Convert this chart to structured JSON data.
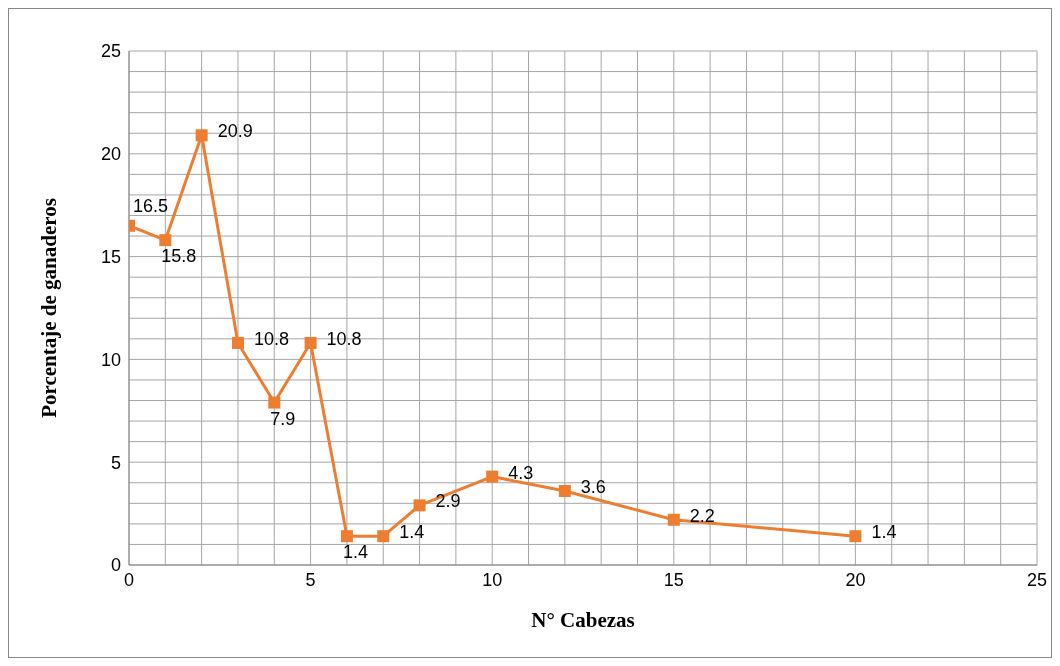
{
  "chart_data": {
    "type": "line",
    "xlabel": "N° Cabezas",
    "ylabel": "Porcentaje de ganaderos",
    "x": [
      0,
      1,
      2,
      3,
      4,
      5,
      6,
      7,
      8,
      10,
      12,
      15,
      20
    ],
    "series": [
      {
        "color": "#ed7d31",
        "values": [
          16.5,
          15.8,
          20.9,
          10.8,
          7.9,
          10.8,
          1.4,
          1.4,
          2.9,
          4.3,
          3.6,
          2.2,
          1.4
        ]
      }
    ],
    "xlim": [
      0,
      25
    ],
    "ylim": [
      0,
      25
    ],
    "xticks": [
      0,
      {
        "value": 1,
        "label": null
      },
      {
        "value": 2,
        "label": null
      },
      {
        "value": 3,
        "label": null
      },
      {
        "value": 4,
        "label": null
      },
      5,
      {
        "value": 6,
        "label": null
      },
      {
        "value": 7,
        "label": null
      },
      {
        "value": 8,
        "label": null
      },
      {
        "value": 9,
        "label": null
      },
      10,
      {
        "value": 11,
        "label": null
      },
      {
        "value": 12,
        "label": null
      },
      {
        "value": 13,
        "label": null
      },
      {
        "value": 14,
        "label": null
      },
      15,
      {
        "value": 16,
        "label": null
      },
      {
        "value": 17,
        "label": null
      },
      {
        "value": 18,
        "label": null
      },
      {
        "value": 19,
        "label": null
      },
      20,
      {
        "value": 21,
        "label": null
      },
      {
        "value": 22,
        "label": null
      },
      {
        "value": 23,
        "label": null
      },
      {
        "value": 24,
        "label": null
      },
      25
    ],
    "yticks": [
      0,
      {
        "value": 1,
        "label": null
      },
      {
        "value": 2,
        "label": null
      },
      {
        "value": 3,
        "label": null
      },
      {
        "value": 4,
        "label": null
      },
      5,
      {
        "value": 6,
        "label": null
      },
      {
        "value": 7,
        "label": null
      },
      {
        "value": 8,
        "label": null
      },
      {
        "value": 9,
        "label": null
      },
      10,
      {
        "value": 11,
        "label": null
      },
      {
        "value": 12,
        "label": null
      },
      {
        "value": 13,
        "label": null
      },
      {
        "value": 14,
        "label": null
      },
      15,
      {
        "value": 16,
        "label": null
      },
      {
        "value": 17,
        "label": null
      },
      {
        "value": 18,
        "label": null
      },
      {
        "value": 19,
        "label": null
      },
      20,
      {
        "value": 21,
        "label": null
      },
      {
        "value": 22,
        "label": null
      },
      {
        "value": 23,
        "label": null
      },
      {
        "value": 24,
        "label": null
      },
      25
    ],
    "grid": true,
    "marker": "square",
    "line_style": "solid",
    "data_labels": true
  }
}
